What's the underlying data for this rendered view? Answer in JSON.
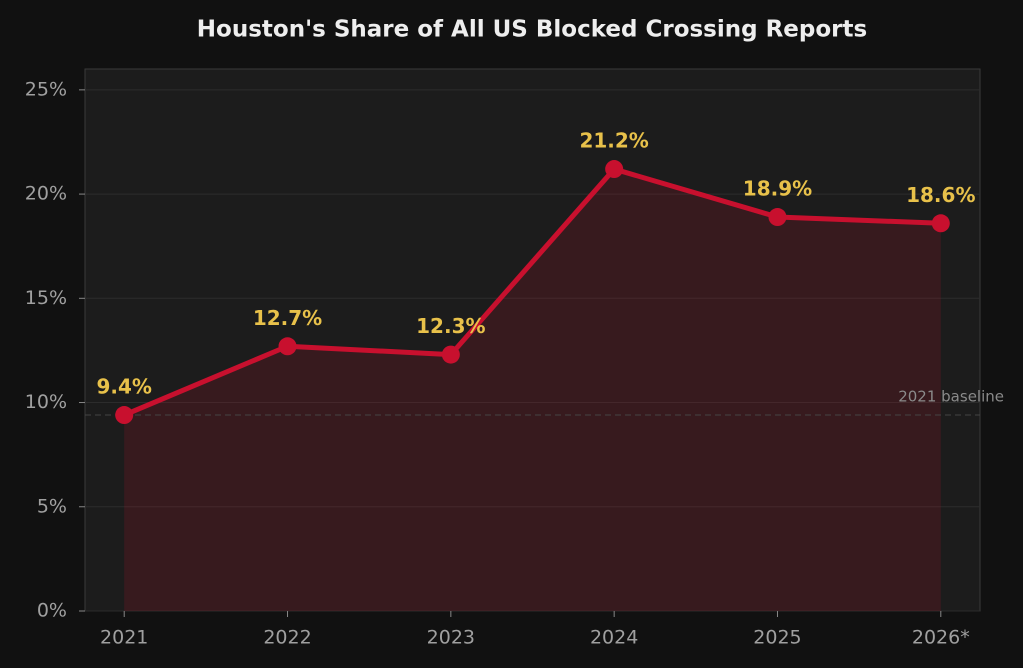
{
  "chart_data": {
    "type": "line",
    "title": "Houston's Share of All US Blocked Crossing Reports",
    "categories": [
      "2021",
      "2022",
      "2023",
      "2024",
      "2025",
      "2026*"
    ],
    "series": [
      {
        "name": "Houston share",
        "color": "#c8102e",
        "values": [
          9.4,
          12.7,
          12.3,
          21.2,
          18.9,
          18.6
        ],
        "value_labels": [
          "9.4%",
          "12.7%",
          "12.3%",
          "21.2%",
          "18.9%",
          "18.6%"
        ]
      }
    ],
    "ylim": [
      0,
      26
    ],
    "yticks": [
      {
        "value": 0,
        "label": "0%"
      },
      {
        "value": 5,
        "label": "5%"
      },
      {
        "value": 10,
        "label": "10%"
      },
      {
        "value": 15,
        "label": "15%"
      },
      {
        "value": 20,
        "label": "20%"
      },
      {
        "value": 25,
        "label": "25%"
      }
    ],
    "grid": true,
    "baseline": {
      "label": "2021 baseline",
      "value": 9.4
    }
  }
}
